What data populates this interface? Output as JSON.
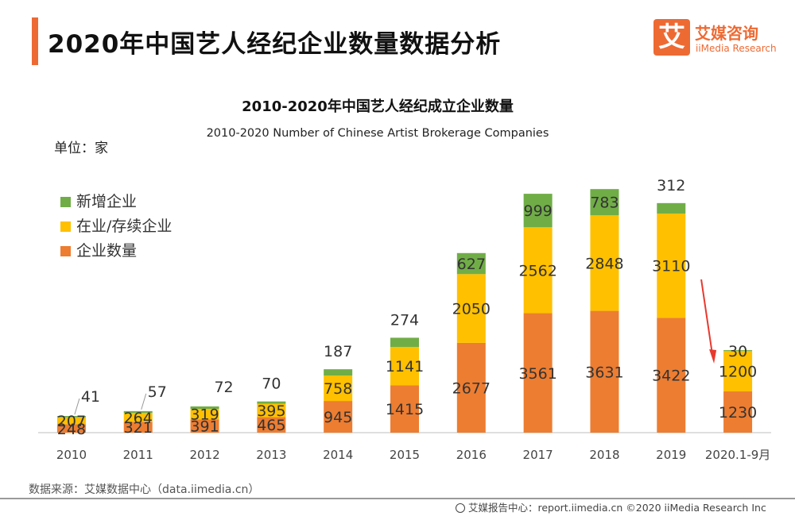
{
  "page": {
    "title": "2020年中国艺人经纪企业数量数据分析",
    "logo_cn": "艾媒咨询",
    "logo_en": "iiMedia Research",
    "logo_mark": "艾",
    "source": "数据来源：艾媒数据中心（data.iimedia.cn）",
    "footer": "艾媒报告中心：report.iimedia.cn   ©2020  iiMedia Research  Inc"
  },
  "colors": {
    "accent": "#ee6a33",
    "series_companies": "#ed7d31",
    "series_existing": "#ffc000",
    "series_new": "#70ad47",
    "arrow": "#e8392e"
  },
  "chart_data": {
    "type": "bar",
    "stacked": true,
    "title": "2010-2020年中国艺人经纪成立企业数量",
    "subtitle": "2010-2020 Number of Chinese Artist Brokerage Companies",
    "unit_label": "单位：家",
    "categories": [
      "2010",
      "2011",
      "2012",
      "2013",
      "2014",
      "2015",
      "2016",
      "2017",
      "2018",
      "2019",
      "2020.1-9月"
    ],
    "series": [
      {
        "name": "企业数量",
        "values": [
          248,
          321,
          391,
          465,
          945,
          1415,
          2677,
          3561,
          3631,
          3422,
          1230
        ]
      },
      {
        "name": "在业/存续企业",
        "values": [
          207,
          264,
          319,
          395,
          758,
          1141,
          2050,
          2562,
          2848,
          3110,
          1200
        ]
      },
      {
        "name": "新增企业",
        "values": [
          41,
          57,
          72,
          70,
          187,
          274,
          627,
          999,
          783,
          312,
          30
        ]
      }
    ],
    "legend_order": [
      2,
      1,
      0
    ],
    "legend_position": "top-left",
    "ylim": [
      0,
      8000
    ],
    "grid": false
  }
}
